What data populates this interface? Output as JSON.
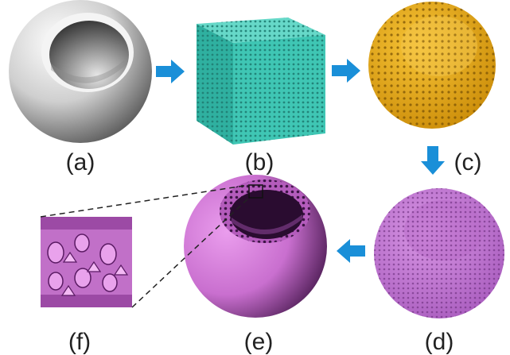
{
  "panels": [
    {
      "id": "a",
      "label": "(a)",
      "content": "hollow sphere"
    },
    {
      "id": "b",
      "label": "(b)",
      "content": "lattice cube"
    },
    {
      "id": "c",
      "label": "(c)",
      "content": "gold lattice sphere"
    },
    {
      "id": "d",
      "label": "(d)",
      "content": "purple lattice sphere"
    },
    {
      "id": "e",
      "label": "(e)",
      "content": "smoothed porous sphere"
    },
    {
      "id": "f",
      "label": "(f)",
      "content": "zoomed surface detail"
    }
  ],
  "colors": {
    "arrow": "#1a8fd8",
    "gray_light": "#f2f2f2",
    "gray_dark": "#6a6a6a",
    "cube_face": "#3fc6b4",
    "gold": "#e6a514",
    "gold_dark": "#9c6a05",
    "purple": "#c77ad6",
    "purple_dark": "#7b3c8c",
    "magenta": "#d580d8",
    "magenta_dark": "#5e2466"
  },
  "arrows": [
    "a-to-b",
    "b-to-c",
    "c-to-d",
    "d-to-e"
  ]
}
